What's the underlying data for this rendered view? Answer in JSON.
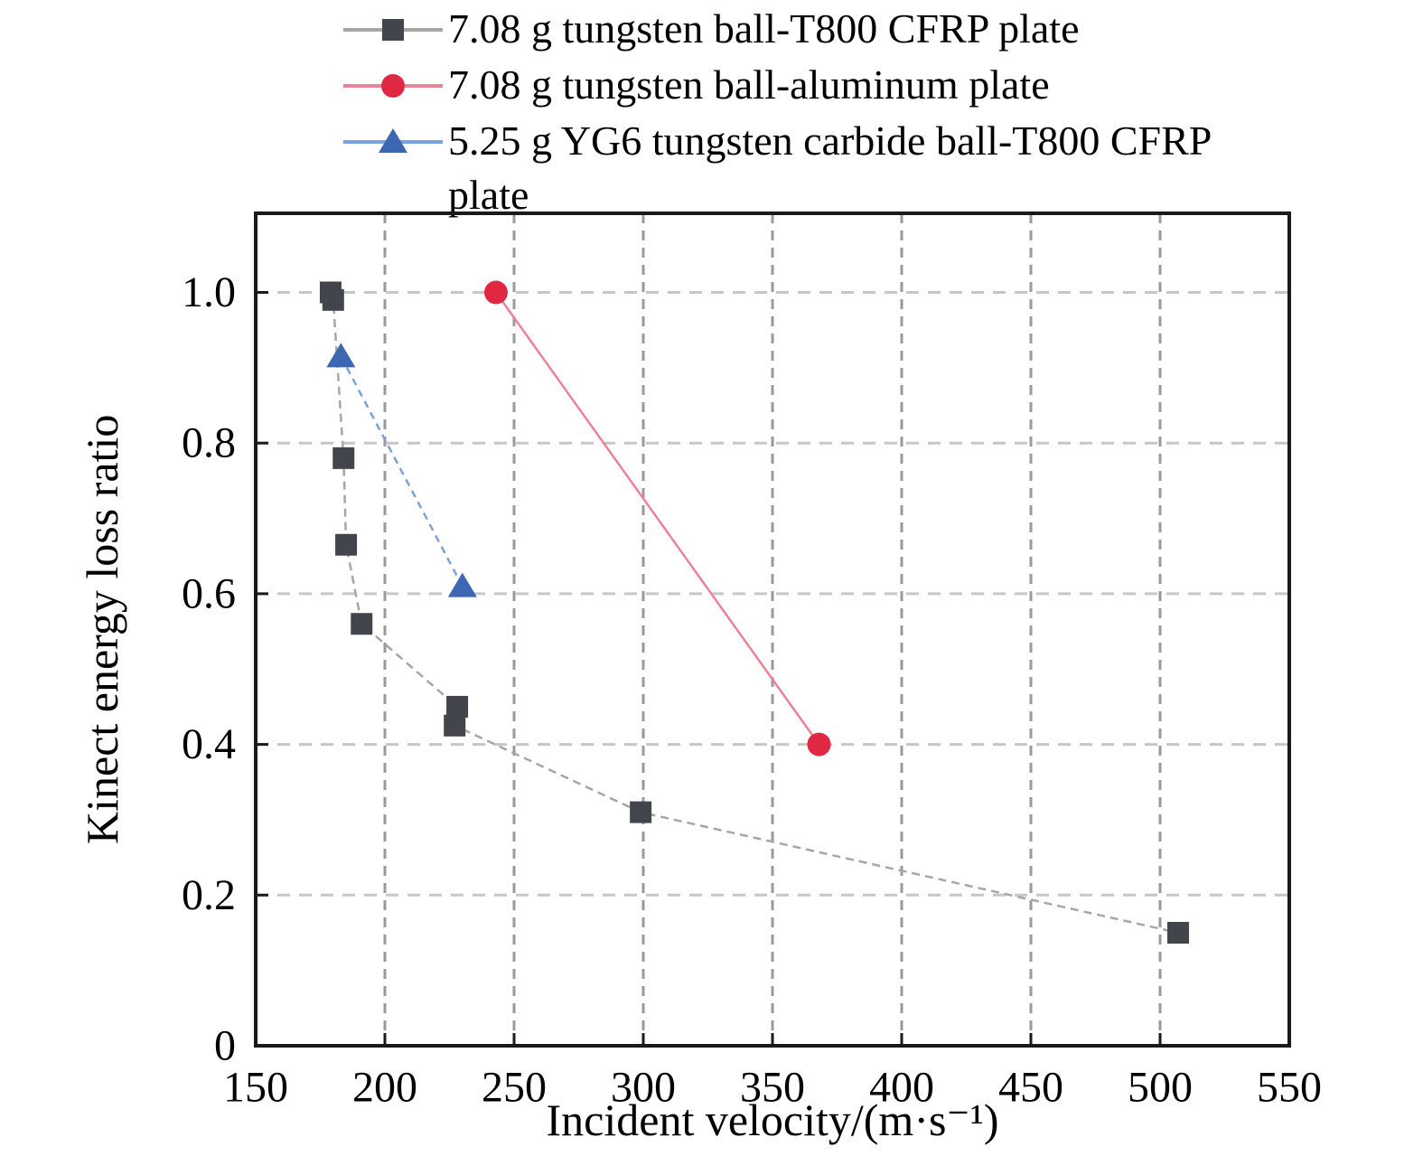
{
  "figure": {
    "background": "#ffffff"
  },
  "legend": {
    "items": [
      {
        "label": "7.08 g tungsten ball-T800 CFRP plate"
      },
      {
        "label": "7.08 g tungsten ball-aluminum plate"
      },
      {
        "label": "5.25 g YG6 tungsten carbide ball-T800 CFRP plate"
      }
    ]
  },
  "chart_data": {
    "type": "scatter",
    "title": "",
    "xlabel": "Incident velocity/(m·s⁻¹)",
    "ylabel": "Kinect energy loss ratio",
    "xlim": [
      150,
      550
    ],
    "ylim": [
      0,
      1.105
    ],
    "xticks": [
      150,
      200,
      250,
      300,
      350,
      400,
      450,
      500,
      550
    ],
    "yticks": [
      0,
      0.2,
      0.4,
      0.6,
      0.8,
      1.0
    ],
    "grid": true,
    "grid_style": "dashed",
    "legend_position": "outside-top-left",
    "colors": {
      "spine": "#1a1a1a",
      "vertical_grid": "#9a9a9a",
      "horizontal_grid": "#c6c6c6"
    },
    "series": [
      {
        "name": "7.08 g tungsten ball-T800 CFRP plate",
        "marker": "square",
        "marker_color": "#42464c",
        "line_color": "#a6a6a6",
        "line_dash": "9 6",
        "points": [
          [
            179,
            1.0
          ],
          [
            180,
            0.99
          ],
          [
            184,
            0.78
          ],
          [
            185,
            0.665
          ],
          [
            191,
            0.56
          ],
          [
            228,
            0.45
          ],
          [
            227,
            0.425
          ],
          [
            299,
            0.31
          ],
          [
            507,
            0.15
          ]
        ]
      },
      {
        "name": "7.08 g tungsten ball-aluminum plate",
        "marker": "circle",
        "marker_color": "#e02843",
        "line_color": "#ec8295",
        "line_dash": "",
        "points": [
          [
            243,
            1.0
          ],
          [
            368,
            0.4
          ]
        ]
      },
      {
        "name": "5.25 g YG6 tungsten carbide ball-T800 CFRP plate",
        "marker": "triangle",
        "marker_color": "#3d67b1",
        "line_color": "#7ba3d8",
        "line_dash": "8 6",
        "points": [
          [
            183,
            0.915
          ],
          [
            230,
            0.61
          ]
        ]
      }
    ]
  }
}
